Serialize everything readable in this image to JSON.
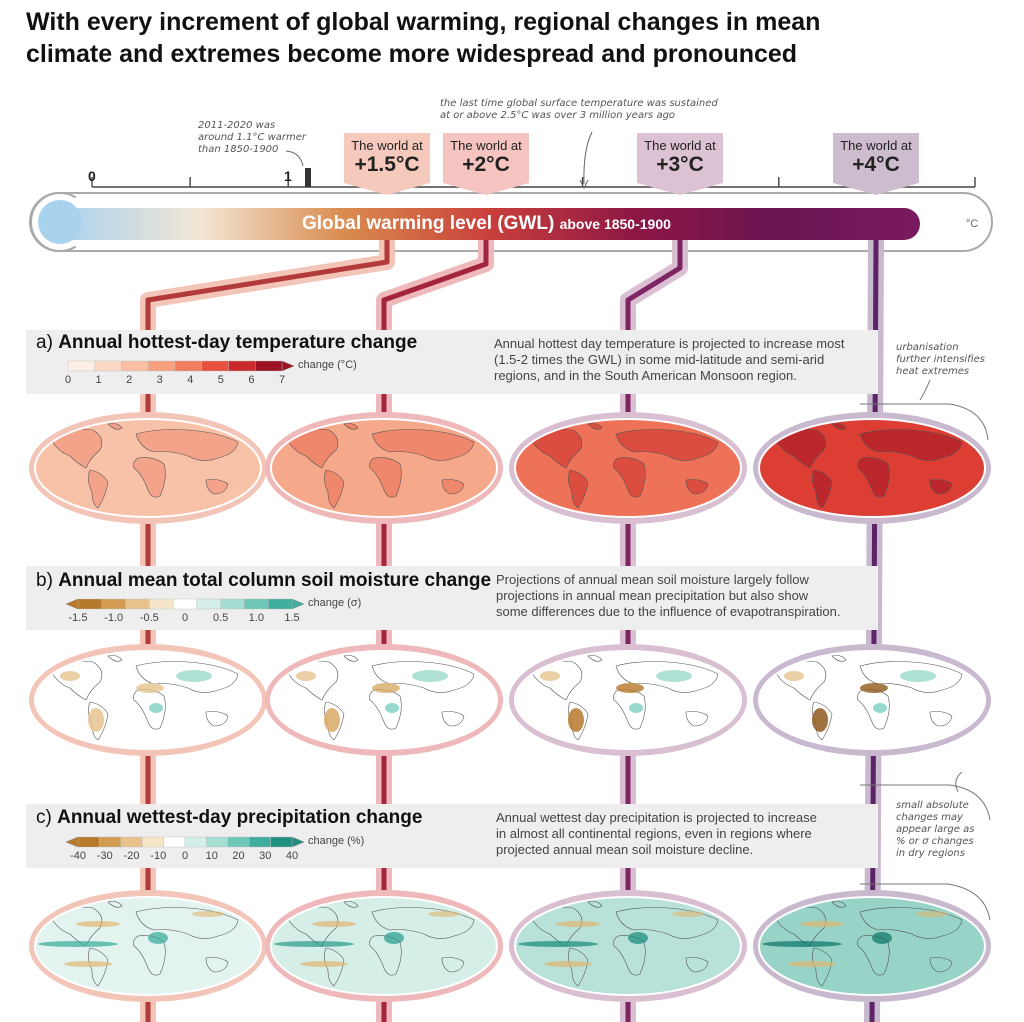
{
  "title": {
    "line1": "With every increment of global warming, regional changes in mean",
    "line2": "climate and extremes become more widespread and pronounced"
  },
  "thermometer": {
    "title": "Global warming level (GWL)",
    "subtitle": "above 1850-1900",
    "unit": "°C",
    "tick_labels": [
      "0",
      "1"
    ],
    "gradient": [
      "#a9d2ee",
      "#f3e6d4",
      "#d98b4e",
      "#c9403c",
      "#8e1744",
      "#6a1451",
      "#7a1a5e"
    ]
  },
  "notes": {
    "present": [
      "2011-2020 was",
      "around 1.1°C warmer",
      "than 1850-1900"
    ],
    "pliocene": [
      "the last time global surface temperature was sustained",
      "at or above 2.5°C was over 3 million years ago"
    ],
    "urban": [
      "urbanisation",
      "further intensifies",
      "heat extremes"
    ],
    "dry": [
      "small absolute",
      "changes may",
      "appear large as",
      "% or σ changes",
      "in dry regions"
    ]
  },
  "worlds": [
    {
      "prefix": "The world at",
      "value": "+1.5°C",
      "flag_color": "#f6c9bd",
      "line_color": "#b33a3a",
      "halo": "#f3c4b8",
      "gwl": 1.5
    },
    {
      "prefix": "The world at",
      "value": "+2°C",
      "flag_color": "#f5c3c0",
      "line_color": "#a3243f",
      "halo": "#efb9bc",
      "gwl": 2
    },
    {
      "prefix": "The world at",
      "value": "+3°C",
      "flag_color": "#dcc2d3",
      "line_color": "#7d2462",
      "halo": "#d9bfd1",
      "gwl": 3
    },
    {
      "prefix": "The world at",
      "value": "+4°C",
      "flag_color": "#cdbccd",
      "line_color": "#5c2367",
      "halo": "#c9b9cf",
      "gwl": 4
    }
  ],
  "panels": [
    {
      "letter": "a)",
      "title": "Annual hottest-day temperature change",
      "description": [
        "Annual hottest day temperature is projected to increase most",
        "(1.5-2 times the GWL) in some mid-latitude and semi-arid",
        "regions, and in the South American Monsoon region."
      ],
      "colorbar": {
        "unit": "change (°C)",
        "labels": [
          "0",
          "1",
          "2",
          "3",
          "4",
          "5",
          "6",
          "7"
        ],
        "colors": [
          "#fdeee6",
          "#fcd9c6",
          "#fbbfa3",
          "#f8a07f",
          "#f27c5f",
          "#e5503f",
          "#c82a2b",
          "#9c1424"
        ],
        "extend": "right-triangle"
      },
      "map_fills": [
        "#f8c2a8",
        "#f6a88b",
        "#ee7257",
        "#dd3e33"
      ],
      "map_accents": [
        "#ee8a70",
        "#e86b52",
        "#cc2f2c",
        "#9e1423"
      ]
    },
    {
      "letter": "b)",
      "title": "Annual mean total column soil moisture change",
      "description": [
        "Projections of annual mean soil moisture largely follow",
        "projections in annual mean precipitation but also show",
        "some differences due to the influence of evapotranspiration."
      ],
      "colorbar": {
        "unit": "change (σ)",
        "labels": [
          "-1.5",
          "-1.0",
          "-0.5",
          "0",
          "0.5",
          "1.0",
          "1.5"
        ],
        "colors": [
          "#b7792b",
          "#d29d52",
          "#e8c48c",
          "#f6e6c9",
          "#ffffff",
          "#d4efe9",
          "#a5ddd2",
          "#6fc7b8",
          "#3fae9f"
        ],
        "extend": "both"
      },
      "map_fills": [
        "#ffffff",
        "#ffffff",
        "#ffffff",
        "#ffffff"
      ],
      "map_accents": [
        "#e6c38f",
        "#d9a967",
        "#b7792b",
        "#8f5a1c"
      ]
    },
    {
      "letter": "c)",
      "title": "Annual wettest-day precipitation change",
      "description": [
        "Annual wettest day precipitation is projected to increase",
        "in almost all continental regions, even in regions where",
        "projected annual mean soil moisture decline."
      ],
      "colorbar": {
        "unit": "change (%)",
        "labels": [
          "-40",
          "-30",
          "-20",
          "-10",
          "0",
          "10",
          "20",
          "30",
          "40"
        ],
        "colors": [
          "#b7792b",
          "#d29d52",
          "#e8c48c",
          "#f6e6c9",
          "#ffffff",
          "#d4efe9",
          "#a5ddd2",
          "#6fc7b8",
          "#3fae9f",
          "#1f8f80"
        ],
        "extend": "both"
      },
      "map_fills": [
        "#e3f3ef",
        "#d6eee8",
        "#b8e2d9",
        "#97d3c6"
      ],
      "map_accents": [
        "#3fae9f",
        "#2f9f90",
        "#1f8f80",
        "#137a6c"
      ]
    }
  ]
}
